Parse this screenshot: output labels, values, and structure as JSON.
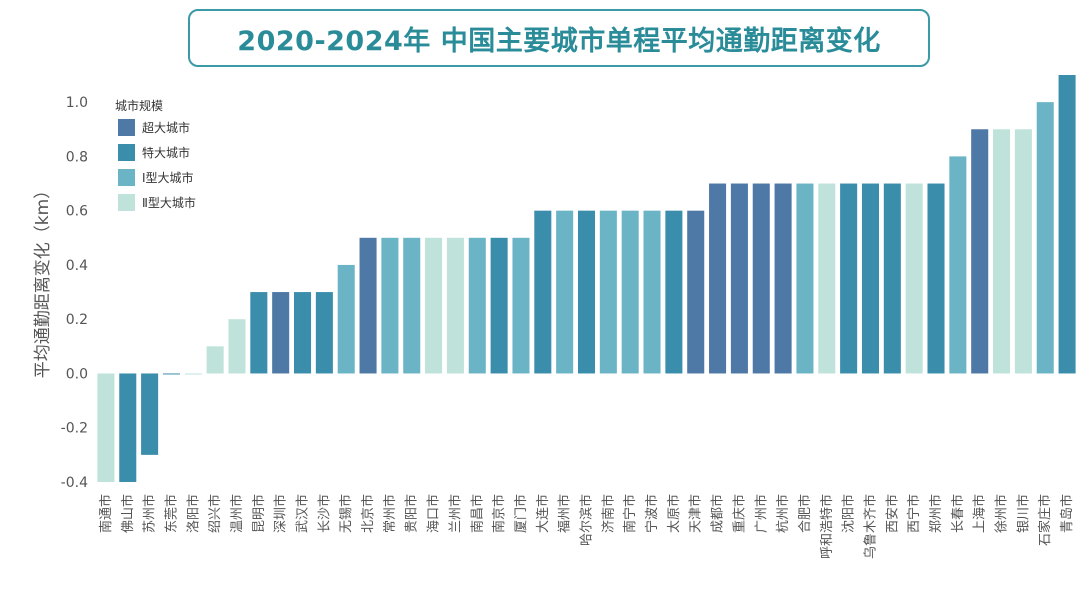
{
  "colors": {
    "超大城市": "#4e78a5",
    "特大城市": "#3a8dab",
    "Ⅰ型大城市": "#6bb4c6",
    "Ⅱ型大城市": "#bfe3da"
  },
  "chart_data": {
    "type": "bar",
    "title": "2020-2024年 中国主要城市单程平均通勤距离变化",
    "xlabel": "",
    "ylabel": "平均通勤距离变化（km）",
    "ylim": [
      -0.4,
      1.1
    ],
    "yticks": [
      -0.4,
      -0.2,
      0.0,
      0.2,
      0.4,
      0.6,
      0.8,
      1.0
    ],
    "ytick_labels": [
      "-0.4",
      "-0.2",
      "0.0",
      "0.2",
      "0.4",
      "0.6",
      "0.8",
      "1.0"
    ],
    "legend": {
      "title": "城市规模",
      "position": "top-left",
      "entries": [
        "超大城市",
        "特大城市",
        "Ⅰ型大城市",
        "Ⅱ型大城市"
      ]
    },
    "categories": [
      "南通市",
      "佛山市",
      "苏州市",
      "东莞市",
      "洛阳市",
      "绍兴市",
      "温州市",
      "昆明市",
      "深圳市",
      "武汉市",
      "长沙市",
      "无锡市",
      "北京市",
      "常州市",
      "贵阳市",
      "海口市",
      "兰州市",
      "南昌市",
      "南京市",
      "厦门市",
      "大连市",
      "福州市",
      "哈尔滨市",
      "济南市",
      "南宁市",
      "宁波市",
      "太原市",
      "天津市",
      "成都市",
      "重庆市",
      "广州市",
      "杭州市",
      "合肥市",
      "呼和浩特市",
      "沈阳市",
      "乌鲁木齐市",
      "西安市",
      "西宁市",
      "郑州市",
      "长春市",
      "上海市",
      "徐州市",
      "银川市",
      "石家庄市",
      "青岛市"
    ],
    "values": [
      -0.4,
      -0.4,
      -0.3,
      0.0,
      0.0,
      0.1,
      0.2,
      0.3,
      0.3,
      0.3,
      0.3,
      0.4,
      0.5,
      0.5,
      0.5,
      0.5,
      0.5,
      0.5,
      0.5,
      0.5,
      0.6,
      0.6,
      0.6,
      0.6,
      0.6,
      0.6,
      0.6,
      0.6,
      0.7,
      0.7,
      0.7,
      0.7,
      0.7,
      0.7,
      0.7,
      0.7,
      0.7,
      0.7,
      0.7,
      0.8,
      0.9,
      0.9,
      0.9,
      1.0,
      1.1
    ],
    "groups": [
      "Ⅱ型大城市",
      "特大城市",
      "特大城市",
      "特大城市",
      "Ⅱ型大城市",
      "Ⅱ型大城市",
      "Ⅱ型大城市",
      "特大城市",
      "超大城市",
      "特大城市",
      "特大城市",
      "Ⅰ型大城市",
      "超大城市",
      "Ⅰ型大城市",
      "Ⅰ型大城市",
      "Ⅱ型大城市",
      "Ⅱ型大城市",
      "Ⅰ型大城市",
      "特大城市",
      "Ⅰ型大城市",
      "特大城市",
      "Ⅰ型大城市",
      "特大城市",
      "Ⅰ型大城市",
      "Ⅰ型大城市",
      "Ⅰ型大城市",
      "特大城市",
      "超大城市",
      "超大城市",
      "超大城市",
      "超大城市",
      "超大城市",
      "Ⅰ型大城市",
      "Ⅱ型大城市",
      "特大城市",
      "特大城市",
      "特大城市",
      "Ⅱ型大城市",
      "特大城市",
      "Ⅰ型大城市",
      "超大城市",
      "Ⅱ型大城市",
      "Ⅱ型大城市",
      "Ⅰ型大城市",
      "特大城市"
    ]
  }
}
